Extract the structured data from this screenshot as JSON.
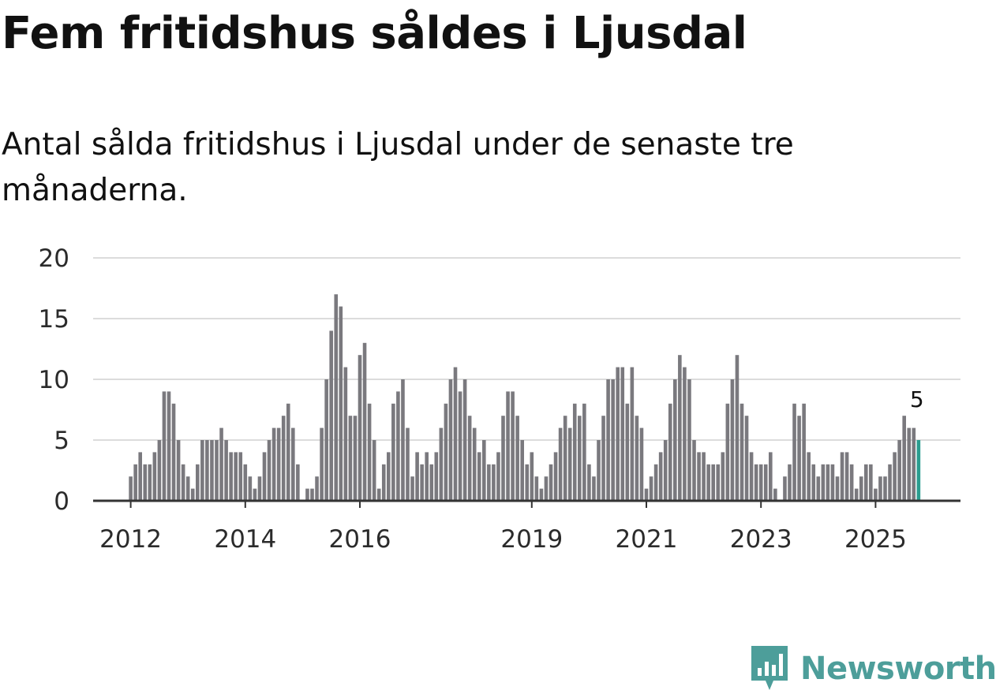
{
  "title": "Fem fritidshus såldes i Ljusdal",
  "subtitle": "Antal sålda fritidshus i Ljusdal under de senaste tre månaderna.",
  "brand": {
    "name": "Newsworthy",
    "icon": "newsworthy-logo-icon"
  },
  "colors": {
    "bar": "#7a797e",
    "highlight": "#2a9d8f",
    "grid": "#dcdcdc",
    "axis": "#333333",
    "brand": "#4d9e9a"
  },
  "chart_data": {
    "type": "bar",
    "title": "Fem fritidshus såldes i Ljusdal",
    "xlabel": "",
    "ylabel": "",
    "ylim": [
      0,
      20
    ],
    "y_ticks": [
      0,
      5,
      10,
      15,
      20
    ],
    "grid": true,
    "start": "2011-11",
    "x_ticks": [
      {
        "label": "2012",
        "index": 2
      },
      {
        "label": "2014",
        "index": 26
      },
      {
        "label": "2016",
        "index": 50
      },
      {
        "label": "2019",
        "index": 86
      },
      {
        "label": "2021",
        "index": 110
      },
      {
        "label": "2023",
        "index": 134
      },
      {
        "label": "2025",
        "index": 158
      }
    ],
    "values": [
      0,
      0,
      2,
      3,
      4,
      3,
      3,
      4,
      5,
      9,
      9,
      8,
      5,
      3,
      2,
      1,
      3,
      5,
      5,
      5,
      5,
      6,
      5,
      4,
      4,
      4,
      3,
      2,
      1,
      2,
      4,
      5,
      6,
      6,
      7,
      8,
      6,
      3,
      0,
      1,
      1,
      2,
      6,
      10,
      14,
      17,
      16,
      11,
      7,
      7,
      12,
      13,
      8,
      5,
      1,
      3,
      4,
      8,
      9,
      10,
      6,
      2,
      4,
      3,
      4,
      3,
      4,
      6,
      8,
      10,
      11,
      9,
      10,
      7,
      6,
      4,
      5,
      3,
      3,
      4,
      7,
      9,
      9,
      7,
      5,
      3,
      4,
      2,
      1,
      2,
      3,
      4,
      6,
      7,
      6,
      8,
      7,
      8,
      3,
      2,
      5,
      7,
      10,
      10,
      11,
      11,
      8,
      11,
      7,
      6,
      1,
      2,
      3,
      4,
      5,
      8,
      10,
      12,
      11,
      10,
      5,
      4,
      4,
      3,
      3,
      3,
      4,
      8,
      10,
      12,
      8,
      7,
      4,
      3,
      3,
      3,
      4,
      1,
      0,
      2,
      3,
      8,
      7,
      8,
      4,
      3,
      2,
      3,
      3,
      3,
      2,
      4,
      4,
      3,
      1,
      2,
      3,
      3,
      1,
      2,
      2,
      3,
      4,
      5,
      7,
      6,
      6,
      5
    ],
    "highlight": {
      "index": 167,
      "label": "5",
      "value": 5
    }
  }
}
